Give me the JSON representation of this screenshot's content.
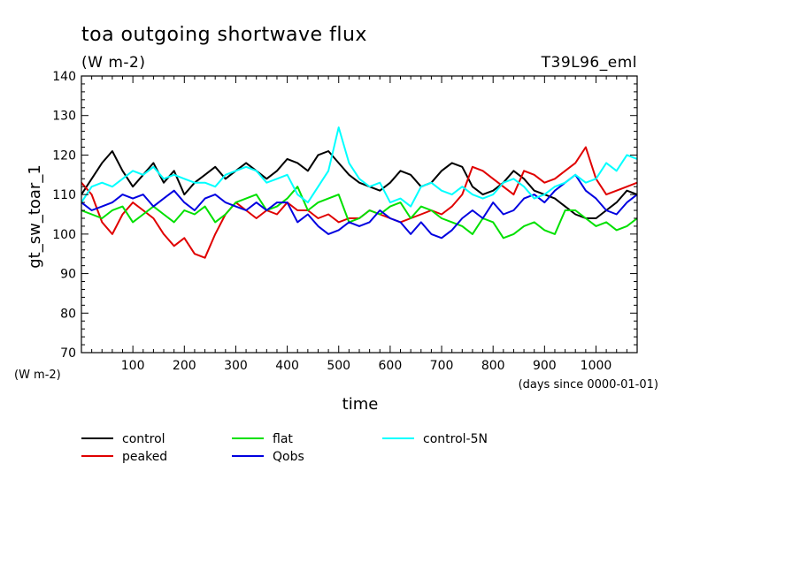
{
  "title": "toa outgoing shortwave flux",
  "units": "(W m-2)",
  "experiment": "T39L96_eml",
  "chart_data": {
    "type": "line",
    "ylabel": "gt_sw_toar_1",
    "ylabel_units": "(W m-2)",
    "xlabel": "time",
    "xunits": "(days since 0000-01-01)",
    "xlim": [
      0,
      1080
    ],
    "ylim": [
      70,
      140
    ],
    "xticks": [
      100,
      200,
      300,
      400,
      500,
      600,
      700,
      800,
      900,
      1000
    ],
    "yticks": [
      70,
      80,
      90,
      100,
      110,
      120,
      130,
      140
    ],
    "x_step_days": 20,
    "series": [
      {
        "name": "control",
        "color": "#000000",
        "values": [
          110,
          114,
          118,
          121,
          116,
          112,
          115,
          118,
          113,
          116,
          110,
          113,
          115,
          117,
          114,
          116,
          118,
          116,
          114,
          116,
          119,
          118,
          116,
          120,
          121,
          118,
          115,
          113,
          112,
          111,
          113,
          116,
          115,
          112,
          113,
          116,
          118,
          117,
          112,
          110,
          111,
          113,
          116,
          114,
          111,
          110,
          109,
          107,
          105,
          104,
          104,
          106,
          108,
          111,
          110
        ]
      },
      {
        "name": "peaked",
        "color": "#e00000",
        "values": [
          113,
          110,
          103,
          100,
          105,
          108,
          106,
          104,
          100,
          97,
          99,
          95,
          94,
          100,
          105,
          108,
          106,
          104,
          106,
          105,
          108,
          106,
          106,
          104,
          105,
          103,
          104,
          104,
          106,
          105,
          104,
          103,
          104,
          105,
          106,
          105,
          107,
          110,
          117,
          116,
          114,
          112,
          110,
          116,
          115,
          113,
          114,
          116,
          118,
          122,
          114,
          110,
          111,
          112,
          113
        ]
      },
      {
        "name": "flat",
        "color": "#00e000",
        "values": [
          106,
          105,
          104,
          106,
          107,
          103,
          105,
          107,
          105,
          103,
          106,
          105,
          107,
          103,
          105,
          108,
          109,
          110,
          106,
          107,
          109,
          112,
          106,
          108,
          109,
          110,
          103,
          104,
          106,
          105,
          107,
          108,
          104,
          107,
          106,
          104,
          103,
          102,
          100,
          104,
          103,
          99,
          100,
          102,
          103,
          101,
          100,
          106,
          106,
          104,
          102,
          103,
          101,
          102,
          104
        ]
      },
      {
        "name": "Qobs",
        "color": "#0000e0",
        "values": [
          108,
          106,
          107,
          108,
          110,
          109,
          110,
          107,
          109,
          111,
          108,
          106,
          109,
          110,
          108,
          107,
          106,
          108,
          106,
          108,
          108,
          103,
          105,
          102,
          100,
          101,
          103,
          102,
          103,
          106,
          104,
          103,
          100,
          103,
          100,
          99,
          101,
          104,
          106,
          104,
          108,
          105,
          106,
          109,
          110,
          108,
          111,
          113,
          115,
          111,
          109,
          106,
          105,
          108,
          110
        ]
      },
      {
        "name": "control-5N",
        "color": "#00ffff",
        "values": [
          108,
          112,
          113,
          112,
          114,
          116,
          115,
          117,
          114,
          115,
          114,
          113,
          113,
          112,
          115,
          116,
          117,
          116,
          113,
          114,
          115,
          110,
          108,
          112,
          116,
          127,
          118,
          114,
          112,
          113,
          108,
          109,
          107,
          112,
          113,
          111,
          110,
          112,
          110,
          109,
          110,
          113,
          114,
          112,
          109,
          110,
          112,
          113,
          115,
          113,
          114,
          118,
          116,
          120,
          119
        ]
      }
    ]
  }
}
